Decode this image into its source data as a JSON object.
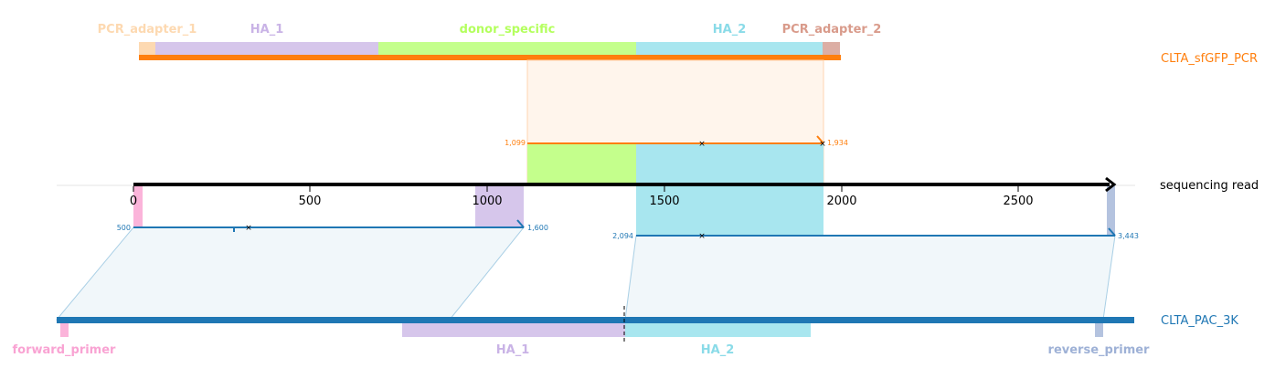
{
  "colors": {
    "pcr_adapter_1": "#fdd9b1",
    "ha_1": "#d6c6eb",
    "donor_specific": "#c4ff8c",
    "ha_2": "#a8e6ef",
    "pcr_adapter_2": "#dcaea4",
    "forward_primer": "#fbb4da",
    "reverse_primer": "#b4c3df",
    "orange": "#ff7f0e",
    "blue": "#1f77b4",
    "read_axis": "#000000",
    "orange_band": "#fff5ec",
    "blue_band": "#f1f7fa"
  },
  "donor": {
    "name": "CLTA_sfGFP_PCR",
    "features": [
      {
        "name": "PCR_adapter_1",
        "color": "#fdd9b1",
        "label_color": "#fdd9b1"
      },
      {
        "name": "HA_1",
        "color": "#d6c6eb",
        "label_color": "#c9b3e6"
      },
      {
        "name": "donor_specific",
        "color": "#c4ff8c",
        "label_color": "#b4ff5e"
      },
      {
        "name": "HA_2",
        "color": "#a8e6ef",
        "label_color": "#8adbe8"
      },
      {
        "name": "PCR_adapter_2",
        "color": "#dcaea4",
        "label_color": "#d99b8b"
      }
    ]
  },
  "read": {
    "name": "sequencing read",
    "ticks": [
      "0",
      "500",
      "1000",
      "1500",
      "2000",
      "2500"
    ]
  },
  "reference": {
    "name": "CLTA_PAC_3K",
    "features": [
      {
        "name": "forward_primer",
        "color": "#fbb4da",
        "label_color": "#f9a3d3"
      },
      {
        "name": "HA_1",
        "color": "#d6c6eb",
        "label_color": "#c9b3e6"
      },
      {
        "name": "HA_2",
        "color": "#a8e6ef",
        "label_color": "#8adbe8"
      },
      {
        "name": "reverse_primer",
        "color": "#b4c3df",
        "label_color": "#9eb1d6"
      }
    ]
  },
  "alignments": {
    "donor": {
      "start": "1,099",
      "end": "1,934"
    },
    "ref_left": {
      "start": "500",
      "end": "1,600"
    },
    "ref_right": {
      "start": "2,094",
      "end": "3,443"
    }
  }
}
